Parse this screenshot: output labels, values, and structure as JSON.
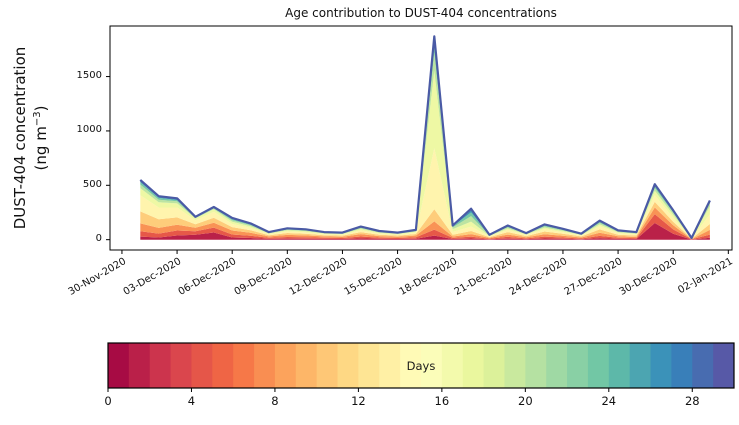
{
  "chart_data": {
    "type": "area",
    "stacked": true,
    "title": "Age contribution to DUST-404 concentrations",
    "ylabel_line1": "DUST-404 concentration",
    "ylabel_line2": {
      "pre": "(ng m",
      "sup": "−3",
      "post": ")"
    },
    "xlabel": "",
    "y_ticks": [
      0,
      500,
      1000,
      1500
    ],
    "ylim": [
      -95,
      1965
    ],
    "x_tick_labels": [
      "30-Nov-2020",
      "03-Dec-2020",
      "06-Dec-2020",
      "09-Dec-2020",
      "12-Dec-2020",
      "15-Dec-2020",
      "18-Dec-2020",
      "21-Dec-2020",
      "24-Dec-2020",
      "27-Dec-2020",
      "30-Dec-2020",
      "02-Jan-2021"
    ],
    "x_tick_days": [
      0,
      3,
      6,
      9,
      12,
      15,
      18,
      21,
      24,
      27,
      30,
      33
    ],
    "xlim_days": [
      -0.65,
      33.2
    ],
    "grid": false,
    "dates": [
      "01-Dec-2020",
      "02-Dec-2020",
      "03-Dec-2020",
      "04-Dec-2020",
      "05-Dec-2020",
      "06-Dec-2020",
      "07-Dec-2020",
      "08-Dec-2020",
      "09-Dec-2020",
      "10-Dec-2020",
      "11-Dec-2020",
      "12-Dec-2020",
      "13-Dec-2020",
      "14-Dec-2020",
      "15-Dec-2020",
      "16-Dec-2020",
      "17-Dec-2020",
      "18-Dec-2020",
      "19-Dec-2020",
      "20-Dec-2020",
      "21-Dec-2020",
      "22-Dec-2020",
      "23-Dec-2020",
      "24-Dec-2020",
      "25-Dec-2020",
      "26-Dec-2020",
      "27-Dec-2020",
      "28-Dec-2020",
      "29-Dec-2020",
      "30-Dec-2020",
      "31-Dec-2020",
      "01-Jan-2021"
    ],
    "x_days": [
      1,
      2,
      3,
      4,
      5,
      6,
      7,
      8,
      9,
      10,
      11,
      12,
      13,
      14,
      15,
      16,
      17,
      18,
      19,
      20,
      21,
      22,
      23,
      24,
      25,
      26,
      27,
      28,
      29,
      30,
      31,
      32
    ],
    "totals": [
      550,
      400,
      380,
      210,
      300,
      200,
      150,
      70,
      105,
      95,
      70,
      65,
      120,
      80,
      65,
      90,
      1870,
      130,
      285,
      45,
      130,
      60,
      140,
      100,
      55,
      175,
      85,
      70,
      510,
      270,
      15,
      360
    ],
    "series": [
      {
        "name": "0–2 days",
        "color": "#ba2149",
        "values": [
          28,
          20,
          38,
          46,
          66,
          20,
          15,
          7,
          10,
          9,
          7,
          6,
          12,
          8,
          6,
          9,
          37,
          6,
          11,
          4,
          10,
          5,
          11,
          8,
          4,
          14,
          7,
          6,
          153,
          54,
          1,
          18
        ]
      },
      {
        "name": "3–5 days",
        "color": "#e65848",
        "values": [
          50,
          36,
          46,
          31,
          45,
          28,
          21,
          10,
          15,
          13,
          10,
          9,
          17,
          11,
          9,
          13,
          56,
          10,
          17,
          5,
          16,
          7,
          17,
          12,
          7,
          21,
          10,
          8,
          82,
          40,
          2,
          29
        ]
      },
      {
        "name": "6–8 days",
        "color": "#f99355",
        "values": [
          72,
          52,
          53,
          32,
          45,
          36,
          27,
          13,
          19,
          17,
          13,
          12,
          22,
          14,
          12,
          16,
          75,
          13,
          23,
          7,
          21,
          10,
          22,
          16,
          9,
          28,
          14,
          11,
          61,
          38,
          2,
          43
        ]
      },
      {
        "name": "9–11 days",
        "color": "#fecd7b",
        "values": [
          110,
          80,
          68,
          32,
          45,
          32,
          24,
          11,
          17,
          15,
          11,
          10,
          19,
          13,
          10,
          14,
          112,
          16,
          29,
          8,
          23,
          11,
          25,
          18,
          10,
          31,
          15,
          13,
          51,
          32,
          3,
          54
        ]
      },
      {
        "name": "12–14 days",
        "color": "#fff4ad",
        "values": [
          148,
          108,
          91,
          38,
          54,
          28,
          21,
          10,
          15,
          13,
          10,
          9,
          17,
          11,
          9,
          13,
          561,
          26,
          40,
          7,
          21,
          10,
          22,
          16,
          9,
          28,
          14,
          11,
          61,
          38,
          2,
          90
        ]
      },
      {
        "name": "15–17 days",
        "color": "#eef8a4",
        "values": [
          66,
          48,
          38,
          17,
          24,
          20,
          15,
          7,
          10,
          10,
          7,
          7,
          12,
          8,
          7,
          9,
          711,
          26,
          46,
          5,
          13,
          6,
          14,
          10,
          5,
          18,
          8,
          7,
          41,
          28,
          2,
          72
        ]
      },
      {
        "name": "18–20 days",
        "color": "#bce4a1",
        "values": [
          33,
          24,
          19,
          6,
          9,
          14,
          11,
          5,
          7,
          7,
          5,
          5,
          8,
          6,
          5,
          6,
          168,
          16,
          51,
          4,
          10,
          5,
          11,
          8,
          4,
          14,
          7,
          6,
          26,
          19,
          1,
          29
        ]
      },
      {
        "name": "21–23 days",
        "color": "#77c8a5",
        "values": [
          22,
          16,
          11,
          4,
          6,
          10,
          7,
          3,
          5,
          5,
          3,
          3,
          6,
          4,
          3,
          5,
          75,
          9,
          34,
          3,
          8,
          3,
          9,
          6,
          3,
          11,
          5,
          4,
          20,
          11,
          1,
          14
        ]
      },
      {
        "name": "24–26 days",
        "color": "#3d94b8",
        "values": [
          11,
          8,
          8,
          2,
          3,
          6,
          5,
          2,
          4,
          3,
          2,
          2,
          4,
          3,
          2,
          3,
          37,
          4,
          20,
          1,
          4,
          2,
          5,
          3,
          2,
          5,
          3,
          2,
          10,
          6,
          1,
          7
        ]
      },
      {
        "name": "27–29 days",
        "color": "#5759a7",
        "values": [
          10,
          8,
          8,
          2,
          3,
          6,
          4,
          2,
          3,
          3,
          2,
          2,
          3,
          2,
          2,
          2,
          38,
          4,
          14,
          1,
          4,
          1,
          4,
          3,
          2,
          5,
          2,
          2,
          5,
          4,
          0,
          4
        ]
      }
    ],
    "top_line_color": "#4a5aa5",
    "colorbar": {
      "label": "Days",
      "min": 0,
      "max": 30,
      "segments": 30,
      "ticks": [
        0,
        4,
        8,
        12,
        16,
        20,
        24,
        28
      ],
      "stops": [
        "#9e0142",
        "#d53e4f",
        "#f46d43",
        "#fdae61",
        "#fee08b",
        "#ffffbf",
        "#e6f598",
        "#abdda4",
        "#66c2a5",
        "#3288bd",
        "#5e4fa2"
      ]
    },
    "spine_color": "#000000",
    "background_color": "#ffffff"
  }
}
